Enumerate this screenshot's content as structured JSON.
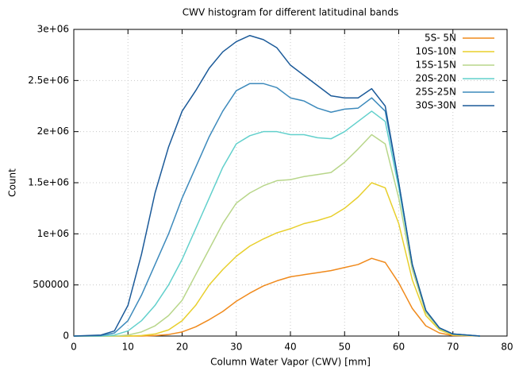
{
  "chart_data": {
    "type": "line",
    "title": "CWV histogram for different latitudinal bands",
    "x_label": "Column Water Vapor (CWV) [mm]",
    "y_label": "Count",
    "x": [
      0,
      5,
      7.5,
      10,
      12.5,
      15,
      17.5,
      20,
      22.5,
      25,
      27.5,
      30,
      32.5,
      35,
      37.5,
      40,
      42.5,
      45,
      47.5,
      50,
      52.5,
      55,
      57.5,
      60,
      62.5,
      65,
      67.5,
      70,
      75
    ],
    "xlim": [
      0,
      80
    ],
    "xticks": [
      0,
      10,
      20,
      30,
      40,
      50,
      60,
      70,
      80
    ],
    "ylim": [
      0,
      3000000
    ],
    "yticks": [
      0,
      500000,
      {
        "value": 1000000,
        "label": "1e+06"
      },
      {
        "value": 1500000,
        "label": "1.5e+06"
      },
      {
        "value": 2000000,
        "label": "2e+06"
      },
      {
        "value": 2500000,
        "label": "2.5e+06"
      },
      {
        "value": 3000000,
        "label": "3e+06"
      }
    ],
    "grid": true,
    "legend": "top-right",
    "series": [
      {
        "name": "5S- 5N",
        "color": "#f08a1c",
        "values": [
          0,
          0,
          0,
          0,
          0,
          5000,
          15000,
          40000,
          90000,
          160000,
          240000,
          340000,
          420000,
          490000,
          540000,
          580000,
          600000,
          620000,
          640000,
          670000,
          700000,
          760000,
          720000,
          520000,
          270000,
          100000,
          30000,
          5000,
          0
        ]
      },
      {
        "name": "10S-10N",
        "color": "#e8cf2c",
        "values": [
          0,
          0,
          0,
          0,
          5000,
          20000,
          60000,
          150000,
          300000,
          500000,
          650000,
          780000,
          880000,
          950000,
          1010000,
          1050000,
          1100000,
          1130000,
          1170000,
          1250000,
          1360000,
          1500000,
          1450000,
          1100000,
          550000,
          200000,
          60000,
          10000,
          0
        ]
      },
      {
        "name": "15S-15N",
        "color": "#b8d68a",
        "values": [
          0,
          0,
          0,
          10000,
          40000,
          100000,
          200000,
          350000,
          600000,
          850000,
          1100000,
          1300000,
          1400000,
          1470000,
          1520000,
          1530000,
          1560000,
          1580000,
          1600000,
          1700000,
          1830000,
          1970000,
          1880000,
          1350000,
          650000,
          230000,
          70000,
          15000,
          0
        ]
      },
      {
        "name": "20S-20N",
        "color": "#62d0cc",
        "values": [
          0,
          0,
          10000,
          50000,
          150000,
          300000,
          500000,
          750000,
          1050000,
          1350000,
          1650000,
          1880000,
          1960000,
          2000000,
          2000000,
          1970000,
          1970000,
          1940000,
          1930000,
          2000000,
          2100000,
          2200000,
          2100000,
          1450000,
          700000,
          250000,
          80000,
          20000,
          0
        ]
      },
      {
        "name": "25S-25N",
        "color": "#3d8abc",
        "values": [
          0,
          5000,
          30000,
          150000,
          400000,
          700000,
          1000000,
          1350000,
          1650000,
          1950000,
          2200000,
          2400000,
          2470000,
          2470000,
          2430000,
          2330000,
          2300000,
          2230000,
          2190000,
          2220000,
          2230000,
          2330000,
          2200000,
          1500000,
          700000,
          250000,
          80000,
          20000,
          0
        ]
      },
      {
        "name": "30S-30N",
        "color": "#1b5a99",
        "values": [
          0,
          10000,
          50000,
          300000,
          800000,
          1400000,
          1850000,
          2200000,
          2400000,
          2620000,
          2780000,
          2880000,
          2940000,
          2900000,
          2820000,
          2650000,
          2550000,
          2450000,
          2350000,
          2330000,
          2330000,
          2420000,
          2250000,
          1500000,
          700000,
          250000,
          80000,
          20000,
          0
        ]
      }
    ]
  }
}
